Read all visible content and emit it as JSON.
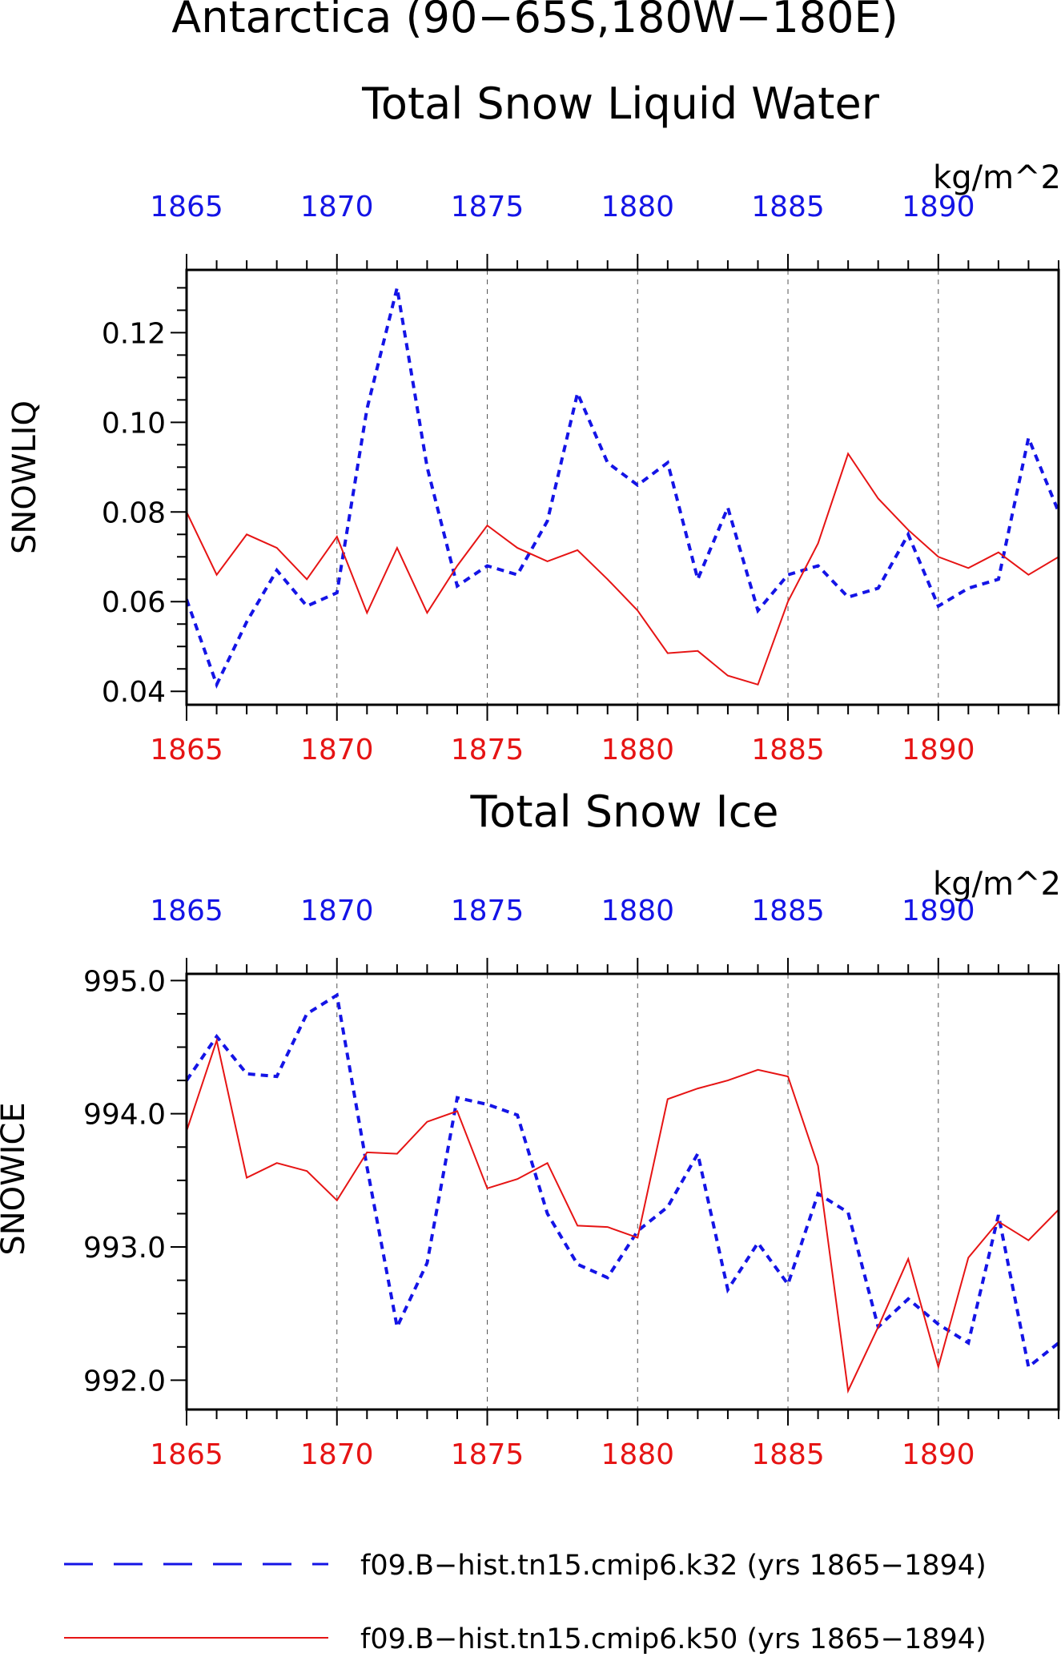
{
  "title_line1": "Antarctica (90−65S,180W−180E)",
  "title_line2": "Total Snow Liquid Water",
  "colors": {
    "blue": "#1414e6",
    "red": "#e61414",
    "axis": "#000000",
    "grid": "#555555"
  },
  "legend": [
    {
      "label": "f09.B−hist.tn15.cmip6.k32 (yrs 1865−1894)",
      "color": "#1414e6",
      "style": "dashed"
    },
    {
      "label": "f09.B−hist.tn15.cmip6.k50 (yrs 1865−1894)",
      "color": "#e61414",
      "style": "solid"
    }
  ],
  "chart_data": [
    {
      "type": "line",
      "title": "Total Snow Liquid Water",
      "units": "kg/m^2",
      "ylabel": "SNOWLIQ",
      "xlim": [
        1865,
        1894
      ],
      "ylim": [
        0.037,
        0.134
      ],
      "yticks": [
        0.04,
        0.06,
        0.08,
        0.1,
        0.12
      ],
      "ytick_labels": [
        "0.04",
        "0.06",
        "0.08",
        "0.10",
        "0.12"
      ],
      "xticks": [
        1865,
        1870,
        1875,
        1880,
        1885,
        1890
      ],
      "xtick_labels": [
        "1865",
        "1870",
        "1875",
        "1880",
        "1885",
        "1890"
      ],
      "x": [
        1865,
        1866,
        1867,
        1868,
        1869,
        1870,
        1871,
        1872,
        1873,
        1874,
        1875,
        1876,
        1877,
        1878,
        1879,
        1880,
        1881,
        1882,
        1883,
        1884,
        1885,
        1886,
        1887,
        1888,
        1889,
        1890,
        1891,
        1892,
        1893,
        1894
      ],
      "series": [
        {
          "color": "#1414e6",
          "style": "dashed",
          "values": [
            0.0605,
            0.0415,
            0.0555,
            0.067,
            0.059,
            0.062,
            0.103,
            0.13,
            0.09,
            0.0635,
            0.068,
            0.066,
            0.078,
            0.1065,
            0.091,
            0.086,
            0.091,
            0.065,
            0.081,
            0.058,
            0.066,
            0.068,
            0.061,
            0.063,
            0.075,
            0.059,
            0.063,
            0.065,
            0.0965,
            0.08
          ]
        },
        {
          "color": "#e61414",
          "style": "solid",
          "values": [
            0.08,
            0.066,
            0.075,
            0.072,
            0.065,
            0.0745,
            0.0575,
            0.072,
            0.0575,
            0.068,
            0.077,
            0.072,
            0.069,
            0.0715,
            0.065,
            0.058,
            0.0485,
            0.049,
            0.0435,
            0.0415,
            0.06,
            0.073,
            0.093,
            0.083,
            0.076,
            0.07,
            0.0675,
            0.071,
            0.066,
            0.07
          ]
        }
      ]
    },
    {
      "type": "line",
      "title": "Total Snow Ice",
      "units": "kg/m^2",
      "ylabel": "SNOWICE",
      "xlim": [
        1865,
        1894
      ],
      "ylim": [
        991.78,
        995.05
      ],
      "yticks": [
        992.0,
        993.0,
        994.0,
        995.0
      ],
      "ytick_labels": [
        "992.0",
        "993.0",
        "994.0",
        "995.0"
      ],
      "xticks": [
        1865,
        1870,
        1875,
        1880,
        1885,
        1890
      ],
      "xtick_labels": [
        "1865",
        "1870",
        "1875",
        "1880",
        "1885",
        "1890"
      ],
      "x": [
        1865,
        1866,
        1867,
        1868,
        1869,
        1870,
        1871,
        1872,
        1873,
        1874,
        1875,
        1876,
        1877,
        1878,
        1879,
        1880,
        1881,
        1882,
        1883,
        1884,
        1885,
        1886,
        1887,
        1888,
        1889,
        1890,
        1891,
        1892,
        1893,
        1894
      ],
      "series": [
        {
          "color": "#1414e6",
          "style": "dashed",
          "values": [
            994.25,
            994.58,
            994.3,
            994.28,
            994.75,
            994.89,
            993.6,
            992.4,
            992.88,
            994.12,
            994.07,
            993.99,
            993.25,
            992.87,
            992.77,
            993.12,
            993.3,
            993.7,
            992.68,
            993.03,
            992.72,
            993.4,
            993.26,
            992.4,
            992.61,
            992.42,
            992.28,
            993.24,
            992.1,
            992.28
          ]
        },
        {
          "color": "#e61414",
          "style": "solid",
          "values": [
            993.87,
            994.55,
            993.52,
            993.63,
            993.57,
            993.35,
            993.71,
            993.7,
            993.94,
            994.02,
            993.44,
            993.51,
            993.63,
            993.16,
            993.15,
            993.07,
            994.11,
            994.19,
            994.25,
            994.33,
            994.28,
            993.61,
            991.92,
            992.4,
            992.91,
            992.1,
            992.92,
            993.19,
            993.05,
            993.28
          ]
        }
      ]
    }
  ]
}
